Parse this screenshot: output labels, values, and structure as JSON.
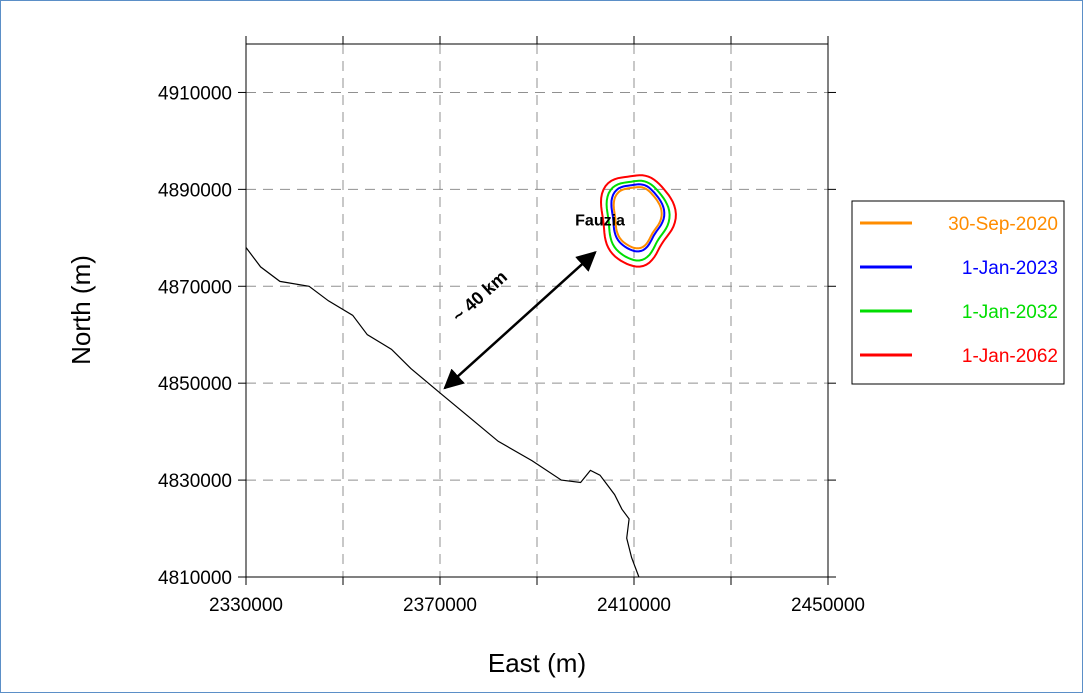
{
  "chart_data": {
    "type": "line",
    "title": "",
    "xlabel": "East (m)",
    "ylabel": "North (m)",
    "xlim": [
      2330000,
      2450000
    ],
    "ylim": [
      4810000,
      4920000
    ],
    "xticks": [
      2330000,
      2370000,
      2410000,
      2450000
    ],
    "xtick_labels": [
      "2330000",
      "2370000",
      "2410000",
      "2450000"
    ],
    "yticks": [
      4810000,
      4830000,
      4850000,
      4870000,
      4890000,
      4910000
    ],
    "ytick_labels": [
      "4810000",
      "4830000",
      "4850000",
      "4870000",
      "4890000",
      "4910000"
    ],
    "grid": true,
    "grid_x_step": 20000,
    "legend_position": "right",
    "series": [
      {
        "name": "30-Sep-2020",
        "color": "#ff8c00",
        "center": [
          2410500,
          4884500
        ],
        "radius_e": 4800,
        "radius_n": 6300
      },
      {
        "name": "1-Jan-2023",
        "color": "#0000ff",
        "center": [
          2410500,
          4884500
        ],
        "radius_e": 5300,
        "radius_n": 6900
      },
      {
        "name": "1-Jan-2032",
        "color": "#00dd00",
        "center": [
          2410500,
          4884000
        ],
        "radius_e": 6300,
        "radius_n": 8200
      },
      {
        "name": "1-Jan-2062",
        "color": "#ff0000",
        "center": [
          2410500,
          4884000
        ],
        "radius_e": 7500,
        "radius_n": 9400
      }
    ],
    "coastline": {
      "color": "#000000",
      "points": [
        [
          2330000,
          4878000
        ],
        [
          2333000,
          4874000
        ],
        [
          2337000,
          4871000
        ],
        [
          2343000,
          4870000
        ],
        [
          2347000,
          4867000
        ],
        [
          2352000,
          4864000
        ],
        [
          2355000,
          4860000
        ],
        [
          2360000,
          4857000
        ],
        [
          2364000,
          4853000
        ],
        [
          2370000,
          4848000
        ],
        [
          2376000,
          4843000
        ],
        [
          2382000,
          4838000
        ],
        [
          2389000,
          4834000
        ],
        [
          2395000,
          4830000
        ],
        [
          2399000,
          4829500
        ],
        [
          2401000,
          4832000
        ],
        [
          2403000,
          4831000
        ],
        [
          2404500,
          4829000
        ],
        [
          2406000,
          4827000
        ],
        [
          2407500,
          4824000
        ],
        [
          2409000,
          4822000
        ],
        [
          2408500,
          4818000
        ],
        [
          2409500,
          4814000
        ],
        [
          2411000,
          4810000
        ]
      ]
    },
    "annotations": [
      {
        "text": "Fauzia",
        "x": 2403000,
        "y": 4882500
      },
      {
        "text": "~ 40 km",
        "x": 2379000,
        "y": 4867000,
        "arrow_from": [
          2371000,
          4849000
        ],
        "arrow_to": [
          2402000,
          4877000
        ]
      }
    ]
  }
}
